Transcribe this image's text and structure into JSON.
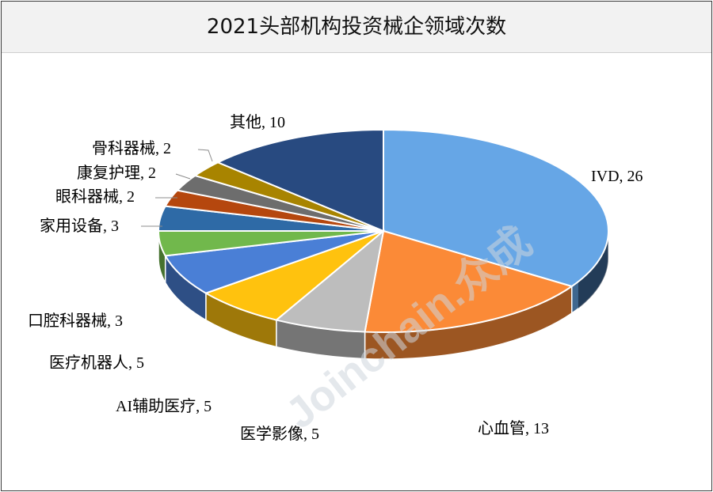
{
  "title": "2021头部机构投资械企领域次数",
  "watermark": "Joinchain.众成",
  "chart_data": {
    "type": "pie",
    "title": "2021头部机构投资械企领域次数",
    "label_format": "{name}, {value}",
    "slices": [
      {
        "name": "IVD",
        "value": 26,
        "color": "#66a6e6"
      },
      {
        "name": "心血管",
        "value": 13,
        "color": "#fb8a37"
      },
      {
        "name": "医学影像",
        "value": 5,
        "color": "#bdbdbd"
      },
      {
        "name": "AI辅助医疗",
        "value": 5,
        "color": "#ffc20e"
      },
      {
        "name": "医疗机器人",
        "value": 5,
        "color": "#4a7fd6"
      },
      {
        "name": "口腔科器械",
        "value": 3,
        "color": "#71b84c"
      },
      {
        "name": "家用设备",
        "value": 3,
        "color": "#2e6aa6"
      },
      {
        "name": "眼科器械",
        "value": 2,
        "color": "#b5470e"
      },
      {
        "name": "康复护理",
        "value": 2,
        "color": "#6d6d6d"
      },
      {
        "name": "骨科器械",
        "value": 2,
        "color": "#a88400"
      },
      {
        "name": "其他",
        "value": 10,
        "color": "#284a80"
      }
    ]
  }
}
